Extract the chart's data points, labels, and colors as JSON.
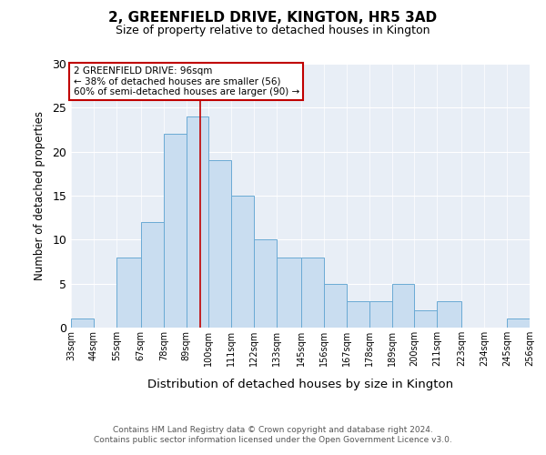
{
  "title1": "2, GREENFIELD DRIVE, KINGTON, HR5 3AD",
  "title2": "Size of property relative to detached houses in Kington",
  "xlabel": "Distribution of detached houses by size in Kington",
  "ylabel": "Number of detached properties",
  "bin_edges": [
    33,
    44,
    55,
    67,
    78,
    89,
    100,
    111,
    122,
    133,
    145,
    156,
    167,
    178,
    189,
    200,
    211,
    223,
    234,
    245,
    256
  ],
  "bar_heights": [
    1,
    0,
    8,
    12,
    22,
    24,
    19,
    15,
    10,
    8,
    8,
    5,
    3,
    3,
    5,
    2,
    3,
    0,
    0,
    1
  ],
  "bar_color": "#c9ddf0",
  "bar_edge_color": "#6aaad4",
  "bar_linewidth": 0.7,
  "reference_line_x": 96,
  "reference_line_color": "#c00000",
  "annotation_text": "2 GREENFIELD DRIVE: 96sqm\n← 38% of detached houses are smaller (56)\n60% of semi-detached houses are larger (90) →",
  "annotation_box_color": "#ffffff",
  "annotation_box_edge_color": "#c00000",
  "ylim": [
    0,
    30
  ],
  "yticks": [
    0,
    5,
    10,
    15,
    20,
    25,
    30
  ],
  "bg_color": "#e8eef6",
  "footnote1": "Contains HM Land Registry data © Crown copyright and database right 2024.",
  "footnote2": "Contains public sector information licensed under the Open Government Licence v3.0."
}
